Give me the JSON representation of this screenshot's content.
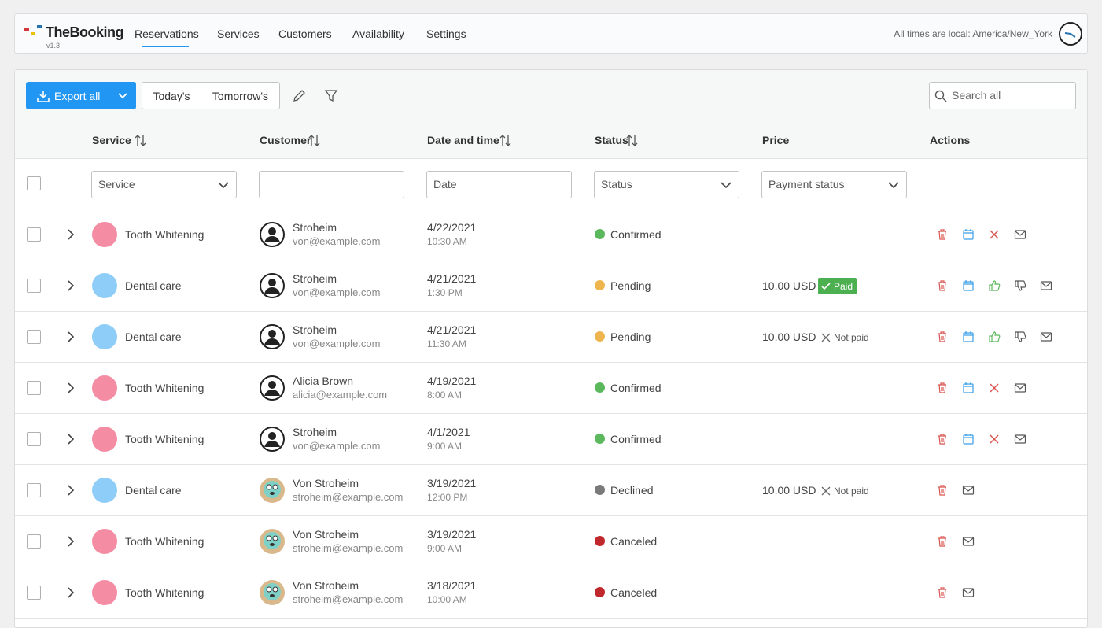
{
  "header": {
    "logo": "TheBooking",
    "version": "v1.3",
    "nav": [
      "Reservations",
      "Services",
      "Customers",
      "Availability",
      "Settings"
    ],
    "active_nav": 0,
    "timezone_note": "All times are local: America/New_York"
  },
  "toolbar": {
    "export": "Export all",
    "today": "Today's",
    "tomorrow": "Tomorrow's",
    "search_placeholder": "Search all"
  },
  "table": {
    "columns": [
      "Service",
      "Customer",
      "Date and time",
      "Status",
      "Price",
      "Actions"
    ],
    "sortable": [
      true,
      true,
      true,
      true,
      false,
      false
    ],
    "filters": {
      "service": "Service",
      "date": "Date",
      "status": "Status",
      "payment": "Payment status"
    },
    "rows": [
      {
        "service": "Tooth Whitening",
        "service_color": "#f48ca4",
        "customer": "Stroheim",
        "email": "von@example.com",
        "avatar": "default",
        "date": "4/22/2021",
        "time": "10:30 AM",
        "status": "Confirmed",
        "status_color": "#5cb85c",
        "actions": [
          "delete",
          "calendar",
          "cancel",
          "email"
        ]
      },
      {
        "service": "Dental care",
        "service_color": "#8ecdf8",
        "customer": "Stroheim",
        "email": "von@example.com",
        "avatar": "default",
        "date": "4/21/2021",
        "time": "1:30 PM",
        "status": "Pending",
        "status_color": "#eeb54e",
        "price": "10.00 USD",
        "payment": "Paid",
        "paid": true,
        "actions": [
          "delete",
          "calendar",
          "approve",
          "decline",
          "email"
        ]
      },
      {
        "service": "Dental care",
        "service_color": "#8ecdf8",
        "customer": "Stroheim",
        "email": "von@example.com",
        "avatar": "default",
        "date": "4/21/2021",
        "time": "11:30 AM",
        "status": "Pending",
        "status_color": "#eeb54e",
        "price": "10.00 USD",
        "payment": "Not paid",
        "paid": false,
        "actions": [
          "delete",
          "calendar",
          "approve",
          "decline",
          "email"
        ]
      },
      {
        "service": "Tooth Whitening",
        "service_color": "#f48ca4",
        "customer": "Alicia Brown",
        "email": "alicia@example.com",
        "avatar": "default",
        "date": "4/19/2021",
        "time": "8:00 AM",
        "status": "Confirmed",
        "status_color": "#5cb85c",
        "actions": [
          "delete",
          "calendar",
          "cancel",
          "email"
        ]
      },
      {
        "service": "Tooth Whitening",
        "service_color": "#f48ca4",
        "customer": "Stroheim",
        "email": "von@example.com",
        "avatar": "default",
        "date": "4/1/2021",
        "time": "9:00 AM",
        "status": "Confirmed",
        "status_color": "#5cb85c",
        "actions": [
          "delete",
          "calendar",
          "cancel",
          "email"
        ]
      },
      {
        "service": "Dental care",
        "service_color": "#8ecdf8",
        "customer": "Von Stroheim",
        "email": "stroheim@example.com",
        "avatar": "custom",
        "date": "3/19/2021",
        "time": "12:00 PM",
        "status": "Declined",
        "status_color": "#7a7a7a",
        "price": "10.00 USD",
        "payment": "Not paid",
        "paid": false,
        "actions": [
          "delete",
          "email"
        ]
      },
      {
        "service": "Tooth Whitening",
        "service_color": "#f48ca4",
        "customer": "Von Stroheim",
        "email": "stroheim@example.com",
        "avatar": "custom",
        "date": "3/19/2021",
        "time": "9:00 AM",
        "status": "Canceled",
        "status_color": "#c0282d",
        "actions": [
          "delete",
          "email"
        ]
      },
      {
        "service": "Tooth Whitening",
        "service_color": "#f48ca4",
        "customer": "Von Stroheim",
        "email": "stroheim@example.com",
        "avatar": "custom",
        "date": "3/18/2021",
        "time": "10:00 AM",
        "status": "Canceled",
        "status_color": "#c0282d",
        "actions": [
          "delete",
          "email"
        ]
      }
    ]
  }
}
